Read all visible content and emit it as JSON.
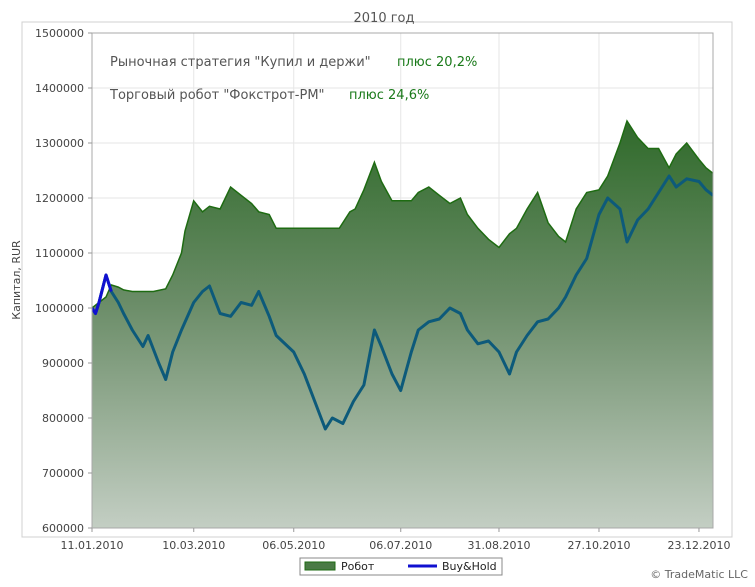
{
  "chart_data": {
    "type": "area",
    "title": "2010 год",
    "ylabel": "Капитал, RUR",
    "xlabel": "",
    "ylim": [
      600000,
      1500000
    ],
    "y_ticks": [
      "600000",
      "700000",
      "800000",
      "900000",
      "1000000",
      "1100000",
      "1200000",
      "1300000",
      "1400000",
      "1500000"
    ],
    "x_ticks": [
      "11.01.2010",
      "10.03.2010",
      "06.05.2010",
      "06.07.2010",
      "31.08.2010",
      "27.10.2010",
      "23.12.2010"
    ],
    "annotations": [
      {
        "label": "Рыночная стратегия \"Купил и держи\"",
        "value": "плюс 20,2%"
      },
      {
        "label": "Торговый робот \"Фокстрот-PM\"",
        "value": "плюс 24,6%"
      }
    ],
    "legend": [
      "Робот",
      "Buy&Hold"
    ],
    "legend_position": "bottom",
    "grid": true,
    "colors": {
      "robot_line": "#1e6b12",
      "buyhold_line": "#0d5a7a",
      "buyhold_start": "#1010d0",
      "axis": "#a0a0a0"
    },
    "series": [
      {
        "name": "Робот",
        "x": [
          "11.01.2010",
          "15.01.2010",
          "19.01.2010",
          "22.01.2010",
          "26.01.2010",
          "29.01.2010",
          "03.02.2010",
          "09.02.2010",
          "15.02.2010",
          "22.02.2010",
          "26.02.2010",
          "03.03.2010",
          "05.03.2010",
          "10.03.2010",
          "15.03.2010",
          "19.03.2010",
          "25.03.2010",
          "31.03.2010",
          "06.04.2010",
          "12.04.2010",
          "16.04.2010",
          "22.04.2010",
          "26.04.2010",
          "06.05.2010",
          "20.05.2010",
          "01.06.2010",
          "07.06.2010",
          "10.06.2010",
          "15.06.2010",
          "21.06.2010",
          "25.06.2010",
          "01.07.2010",
          "06.07.2010",
          "12.07.2010",
          "16.07.2010",
          "22.07.2010",
          "28.07.2010",
          "03.08.2010",
          "09.08.2010",
          "13.08.2010",
          "19.08.2010",
          "25.08.2010",
          "31.08.2010",
          "06.09.2010",
          "10.09.2010",
          "16.09.2010",
          "22.09.2010",
          "28.09.2010",
          "04.10.2010",
          "08.10.2010",
          "14.10.2010",
          "20.10.2010",
          "27.10.2010",
          "01.11.2010",
          "08.11.2010",
          "12.11.2010",
          "18.11.2010",
          "24.11.2010",
          "30.11.2010",
          "06.12.2010",
          "10.12.2010",
          "16.12.2010",
          "23.12.2010",
          "27.12.2010",
          "31.12.2010"
        ],
        "values": [
          1000000,
          1010000,
          1020000,
          1042000,
          1038000,
          1033000,
          1030000,
          1030000,
          1030000,
          1035000,
          1060000,
          1100000,
          1140000,
          1195000,
          1175000,
          1185000,
          1180000,
          1220000,
          1205000,
          1190000,
          1175000,
          1170000,
          1145000,
          1145000,
          1145000,
          1145000,
          1175000,
          1180000,
          1215000,
          1265000,
          1230000,
          1195000,
          1195000,
          1195000,
          1210000,
          1220000,
          1205000,
          1190000,
          1200000,
          1170000,
          1145000,
          1125000,
          1110000,
          1135000,
          1145000,
          1180000,
          1210000,
          1155000,
          1130000,
          1120000,
          1180000,
          1210000,
          1215000,
          1240000,
          1300000,
          1340000,
          1310000,
          1290000,
          1290000,
          1255000,
          1280000,
          1300000,
          1270000,
          1255000,
          1245000
        ]
      },
      {
        "name": "Buy&Hold",
        "x": [
          "11.01.2010",
          "13.01.2010",
          "15.01.2010",
          "19.01.2010",
          "22.01.2010",
          "26.01.2010",
          "29.01.2010",
          "03.02.2010",
          "09.02.2010",
          "12.02.2010",
          "18.02.2010",
          "22.02.2010",
          "26.02.2010",
          "03.03.2010",
          "10.03.2010",
          "15.03.2010",
          "19.03.2010",
          "25.03.2010",
          "31.03.2010",
          "06.04.2010",
          "12.04.2010",
          "16.04.2010",
          "22.04.2010",
          "26.04.2010",
          "06.05.2010",
          "12.05.2010",
          "18.05.2010",
          "24.05.2010",
          "28.05.2010",
          "03.06.2010",
          "09.06.2010",
          "15.06.2010",
          "21.06.2010",
          "25.06.2010",
          "01.07.2010",
          "06.07.2010",
          "12.07.2010",
          "16.07.2010",
          "22.07.2010",
          "28.07.2010",
          "03.08.2010",
          "09.08.2010",
          "13.08.2010",
          "19.08.2010",
          "25.08.2010",
          "31.08.2010",
          "06.09.2010",
          "10.09.2010",
          "16.09.2010",
          "22.09.2010",
          "28.09.2010",
          "04.10.2010",
          "08.10.2010",
          "14.10.2010",
          "20.10.2010",
          "27.10.2010",
          "01.11.2010",
          "08.11.2010",
          "12.11.2010",
          "18.11.2010",
          "24.11.2010",
          "30.11.2010",
          "06.12.2010",
          "10.12.2010",
          "16.12.2010",
          "23.12.2010",
          "27.12.2010",
          "31.12.2010"
        ],
        "values": [
          1000000,
          990000,
          1010000,
          1060000,
          1030000,
          1010000,
          990000,
          960000,
          930000,
          950000,
          900000,
          870000,
          920000,
          960000,
          1010000,
          1030000,
          1040000,
          990000,
          985000,
          1010000,
          1005000,
          1030000,
          985000,
          950000,
          920000,
          880000,
          830000,
          780000,
          800000,
          790000,
          830000,
          860000,
          960000,
          930000,
          880000,
          850000,
          920000,
          960000,
          975000,
          980000,
          1000000,
          990000,
          960000,
          935000,
          940000,
          920000,
          880000,
          920000,
          950000,
          975000,
          980000,
          1000000,
          1020000,
          1060000,
          1090000,
          1170000,
          1200000,
          1180000,
          1120000,
          1160000,
          1180000,
          1210000,
          1240000,
          1220000,
          1235000,
          1230000,
          1215000,
          1205000
        ]
      }
    ]
  },
  "footer": {
    "copyright": "© TradeMatic LLC"
  }
}
